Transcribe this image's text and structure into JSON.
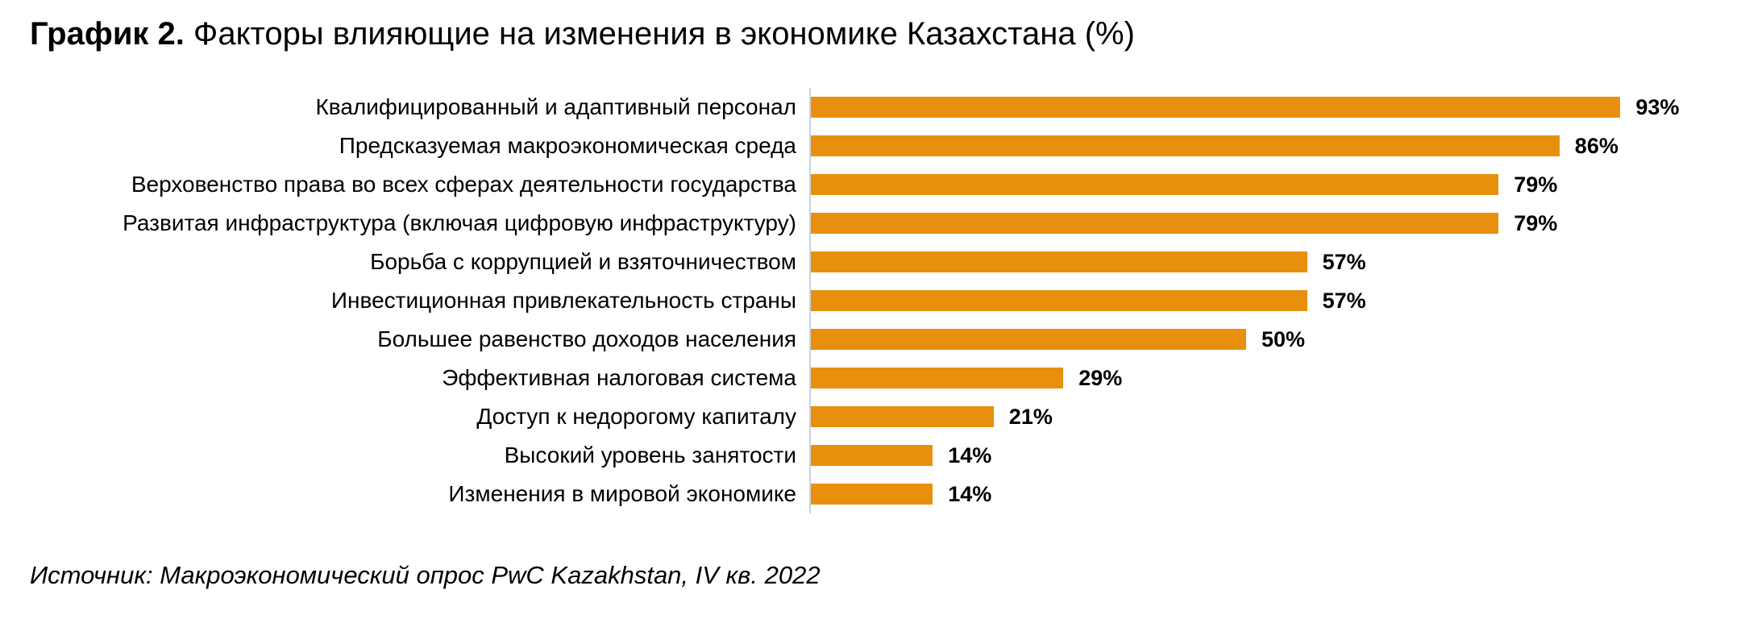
{
  "title": {
    "prefix": "График 2.",
    "rest": "Факторы влияющие на изменения в экономике Казахстана (%)"
  },
  "source": "Источник: Макроэкономический опрос PwC Kazakhstan, IV кв. 2022",
  "colors": {
    "bar": "#E8900E",
    "axis_line": "#C9D4DC",
    "text": "#000000"
  },
  "chart_data": {
    "type": "bar",
    "orientation": "horizontal",
    "title": "График 2. Факторы влияющие на изменения в экономике Казахстана (%)",
    "categories": [
      "Квалифицированный и адаптивный персонал",
      "Предсказуемая макроэкономическая среда",
      "Верховенство права во всех сферах деятельности государства",
      "Развитая инфраструктура (включая цифровую инфраструктуру)",
      "Борьба с коррупцией и взяточничеством",
      "Инвестиционная привлекательность страны",
      "Большее равенство доходов населения",
      "Эффективная налоговая система",
      "Доступ к недорогому капиталу",
      "Высокий уровень занятости",
      "Изменения в мировой экономике"
    ],
    "values": [
      93,
      86,
      79,
      79,
      57,
      57,
      50,
      29,
      21,
      14,
      14
    ],
    "data_labels": [
      "93%",
      "86%",
      "79%",
      "79%",
      "57%",
      "57%",
      "50%",
      "29%",
      "21%",
      "14%",
      "14%"
    ],
    "value_suffix": "%",
    "xlim": [
      0,
      100
    ],
    "xlabel": "",
    "ylabel": "",
    "grid": false,
    "legend": false,
    "bar_color": "#E8900E",
    "source": "Источник: Макроэкономический опрос PwC Kazakhstan, IV кв. 2022"
  }
}
